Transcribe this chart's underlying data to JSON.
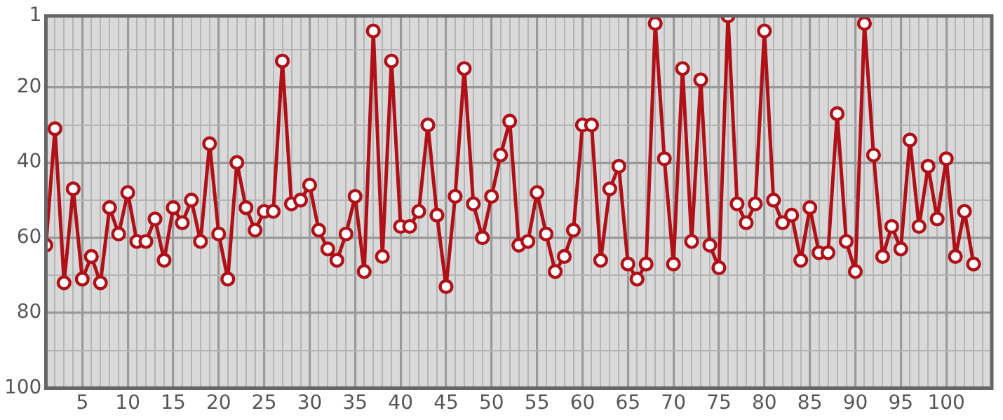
{
  "chart_data": {
    "type": "line",
    "x": [
      1,
      2,
      3,
      4,
      5,
      6,
      7,
      8,
      9,
      10,
      11,
      12,
      13,
      14,
      15,
      16,
      17,
      18,
      19,
      20,
      21,
      22,
      23,
      24,
      25,
      26,
      27,
      28,
      29,
      30,
      31,
      32,
      33,
      34,
      35,
      36,
      37,
      38,
      39,
      40,
      41,
      42,
      43,
      44,
      45,
      46,
      47,
      48,
      49,
      50,
      51,
      52,
      53,
      54,
      55,
      56,
      57,
      58,
      59,
      60,
      61,
      62,
      63,
      64,
      65,
      66,
      67,
      68,
      69,
      70,
      71,
      72,
      73,
      74,
      75,
      76,
      77,
      78,
      79,
      80,
      81,
      82,
      83,
      84,
      85,
      86,
      87,
      88,
      89,
      90,
      91,
      92,
      93,
      94,
      95,
      96,
      97,
      98,
      99,
      100,
      101,
      102,
      103
    ],
    "series": [
      {
        "color": "#b01018",
        "values": [
          62,
          31,
          72,
          47,
          71,
          65,
          72,
          52,
          59,
          48,
          61,
          61,
          55,
          66,
          52,
          56,
          50,
          61,
          35,
          59,
          71,
          40,
          52,
          58,
          53,
          53,
          13,
          51,
          50,
          46,
          58,
          63,
          66,
          59,
          49,
          69,
          5,
          65,
          13,
          57,
          57,
          53,
          30,
          54,
          73,
          49,
          15,
          51,
          60,
          49,
          38,
          29,
          62,
          61,
          48,
          59,
          69,
          65,
          58,
          30,
          30,
          66,
          47,
          41,
          67,
          71,
          67,
          3,
          39,
          67,
          15,
          61,
          18,
          62,
          68,
          1,
          51,
          56,
          51,
          5,
          50,
          56,
          54,
          66,
          52,
          64,
          64,
          27,
          61,
          69,
          3,
          38,
          65,
          57,
          63,
          34,
          57,
          41,
          55,
          39,
          65,
          53,
          67
        ]
      }
    ],
    "xlim": [
      1,
      105
    ],
    "xticks": [
      {
        "value": 1,
        "label": null
      },
      {
        "value": 2,
        "label": null
      },
      {
        "value": 3,
        "label": null
      },
      {
        "value": 4,
        "label": null
      },
      5,
      {
        "value": 6,
        "label": null
      },
      {
        "value": 7,
        "label": null
      },
      {
        "value": 8,
        "label": null
      },
      {
        "value": 9,
        "label": null
      },
      10,
      {
        "value": 11,
        "label": null
      },
      {
        "value": 12,
        "label": null
      },
      {
        "value": 13,
        "label": null
      },
      {
        "value": 14,
        "label": null
      },
      15,
      {
        "value": 16,
        "label": null
      },
      {
        "value": 17,
        "label": null
      },
      {
        "value": 18,
        "label": null
      },
      {
        "value": 19,
        "label": null
      },
      20,
      {
        "value": 21,
        "label": null
      },
      {
        "value": 22,
        "label": null
      },
      {
        "value": 23,
        "label": null
      },
      {
        "value": 24,
        "label": null
      },
      25,
      {
        "value": 26,
        "label": null
      },
      {
        "value": 27,
        "label": null
      },
      {
        "value": 28,
        "label": null
      },
      {
        "value": 29,
        "label": null
      },
      30,
      {
        "value": 31,
        "label": null
      },
      {
        "value": 32,
        "label": null
      },
      {
        "value": 33,
        "label": null
      },
      {
        "value": 34,
        "label": null
      },
      35,
      {
        "value": 36,
        "label": null
      },
      {
        "value": 37,
        "label": null
      },
      {
        "value": 38,
        "label": null
      },
      {
        "value": 39,
        "label": null
      },
      40,
      {
        "value": 41,
        "label": null
      },
      {
        "value": 42,
        "label": null
      },
      {
        "value": 43,
        "label": null
      },
      {
        "value": 44,
        "label": null
      },
      45,
      {
        "value": 46,
        "label": null
      },
      {
        "value": 47,
        "label": null
      },
      {
        "value": 48,
        "label": null
      },
      {
        "value": 49,
        "label": null
      },
      50,
      {
        "value": 51,
        "label": null
      },
      {
        "value": 52,
        "label": null
      },
      {
        "value": 53,
        "label": null
      },
      {
        "value": 54,
        "label": null
      },
      55,
      {
        "value": 56,
        "label": null
      },
      {
        "value": 57,
        "label": null
      },
      {
        "value": 58,
        "label": null
      },
      {
        "value": 59,
        "label": null
      },
      60,
      {
        "value": 61,
        "label": null
      },
      {
        "value": 62,
        "label": null
      },
      {
        "value": 63,
        "label": null
      },
      {
        "value": 64,
        "label": null
      },
      65,
      {
        "value": 66,
        "label": null
      },
      {
        "value": 67,
        "label": null
      },
      {
        "value": 68,
        "label": null
      },
      {
        "value": 69,
        "label": null
      },
      70,
      {
        "value": 71,
        "label": null
      },
      {
        "value": 72,
        "label": null
      },
      {
        "value": 73,
        "label": null
      },
      {
        "value": 74,
        "label": null
      },
      75,
      {
        "value": 76,
        "label": null
      },
      {
        "value": 77,
        "label": null
      },
      {
        "value": 78,
        "label": null
      },
      {
        "value": 79,
        "label": null
      },
      80,
      {
        "value": 81,
        "label": null
      },
      {
        "value": 82,
        "label": null
      },
      {
        "value": 83,
        "label": null
      },
      {
        "value": 84,
        "label": null
      },
      85,
      {
        "value": 86,
        "label": null
      },
      {
        "value": 87,
        "label": null
      },
      {
        "value": 88,
        "label": null
      },
      {
        "value": 89,
        "label": null
      },
      90,
      {
        "value": 91,
        "label": null
      },
      {
        "value": 92,
        "label": null
      },
      {
        "value": 93,
        "label": null
      },
      {
        "value": 94,
        "label": null
      },
      95,
      {
        "value": 96,
        "label": null
      },
      {
        "value": 97,
        "label": null
      },
      {
        "value": 98,
        "label": null
      },
      {
        "value": 99,
        "label": null
      },
      100,
      {
        "value": 101,
        "label": null
      },
      {
        "value": 102,
        "label": null
      },
      {
        "value": 103,
        "label": null
      },
      {
        "value": 104,
        "label": null
      },
      {
        "value": 105,
        "label": null
      }
    ],
    "ylim": [
      100,
      1
    ],
    "yticks": [
      1,
      {
        "value": 10,
        "label": null
      },
      20,
      {
        "value": 30,
        "label": null
      },
      40,
      {
        "value": 50,
        "label": null
      },
      60,
      {
        "value": 70,
        "label": null
      },
      80,
      {
        "value": 90,
        "label": null
      },
      100
    ],
    "grid": true,
    "marker": "circle",
    "line_style": "solid",
    "legend": false
  }
}
